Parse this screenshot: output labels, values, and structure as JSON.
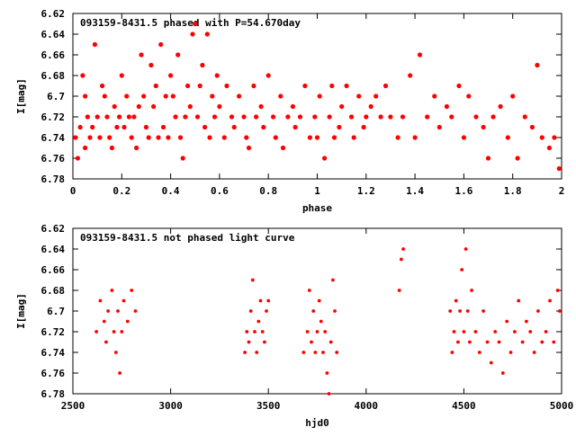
{
  "chart_data": [
    {
      "type": "scatter",
      "title": "093159-8431.5 phased with P=54.670day",
      "xlabel": "phase",
      "ylabel": "I[mag]",
      "xlim": [
        0,
        2
      ],
      "ylim": [
        6.62,
        6.78
      ],
      "y_inverted": true,
      "x_ticks": [
        0,
        0.2,
        0.4,
        0.6,
        0.8,
        1,
        1.2,
        1.4,
        1.6,
        1.8,
        2
      ],
      "x_tick_labels": [
        "0",
        "0.2",
        "0.4",
        "0.6",
        "0.8",
        "1",
        "1.2",
        "1.4",
        "1.6",
        "1.8",
        "2"
      ],
      "y_ticks": [
        6.62,
        6.64,
        6.66,
        6.68,
        6.7,
        6.72,
        6.74,
        6.76,
        6.78
      ],
      "y_tick_labels": [
        "6.62",
        "6.64",
        "6.66",
        "6.68",
        "6.7",
        "6.72",
        "6.74",
        "6.76",
        "6.78"
      ],
      "marker_color": "#ff0000",
      "grid": false,
      "x": [
        0.01,
        0.02,
        0.03,
        0.04,
        0.05,
        0.05,
        0.06,
        0.07,
        0.08,
        0.09,
        0.1,
        0.11,
        0.12,
        0.13,
        0.14,
        0.15,
        0.16,
        0.17,
        0.18,
        0.19,
        0.2,
        0.21,
        0.22,
        0.23,
        0.24,
        0.25,
        0.26,
        0.27,
        0.28,
        0.29,
        0.3,
        0.31,
        0.32,
        0.33,
        0.34,
        0.35,
        0.36,
        0.37,
        0.38,
        0.39,
        0.4,
        0.41,
        0.42,
        0.43,
        0.44,
        0.45,
        0.46,
        0.47,
        0.48,
        0.49,
        0.5,
        0.51,
        0.52,
        0.53,
        0.54,
        0.55,
        0.56,
        0.57,
        0.58,
        0.59,
        0.6,
        0.62,
        0.63,
        0.65,
        0.66,
        0.68,
        0.7,
        0.71,
        0.72,
        0.74,
        0.75,
        0.77,
        0.78,
        0.8,
        0.82,
        0.83,
        0.85,
        0.86,
        0.88,
        0.9,
        0.91,
        0.93,
        0.95,
        0.97,
        0.99,
        1.0,
        1.01,
        1.03,
        1.05,
        1.06,
        1.07,
        1.09,
        1.1,
        1.12,
        1.14,
        1.15,
        1.17,
        1.19,
        1.2,
        1.22,
        1.24,
        1.26,
        1.28,
        1.3,
        1.33,
        1.35,
        1.38,
        1.4,
        1.42,
        1.45,
        1.48,
        1.5,
        1.53,
        1.55,
        1.58,
        1.6,
        1.62,
        1.65,
        1.68,
        1.7,
        1.72,
        1.75,
        1.78,
        1.8,
        1.82,
        1.85,
        1.88,
        1.9,
        1.92,
        1.95,
        1.97,
        1.99
      ],
      "y": [
        6.74,
        6.76,
        6.73,
        6.68,
        6.7,
        6.75,
        6.72,
        6.74,
        6.73,
        6.65,
        6.72,
        6.74,
        6.69,
        6.7,
        6.72,
        6.74,
        6.75,
        6.71,
        6.73,
        6.72,
        6.68,
        6.73,
        6.7,
        6.72,
        6.74,
        6.72,
        6.75,
        6.71,
        6.66,
        6.7,
        6.73,
        6.74,
        6.67,
        6.71,
        6.69,
        6.74,
        6.65,
        6.73,
        6.7,
        6.74,
        6.68,
        6.7,
        6.72,
        6.66,
        6.74,
        6.76,
        6.72,
        6.69,
        6.71,
        6.64,
        6.63,
        6.72,
        6.69,
        6.67,
        6.73,
        6.64,
        6.74,
        6.7,
        6.72,
        6.68,
        6.71,
        6.74,
        6.69,
        6.72,
        6.73,
        6.7,
        6.72,
        6.74,
        6.75,
        6.69,
        6.72,
        6.71,
        6.73,
        6.68,
        6.72,
        6.74,
        6.7,
        6.75,
        6.72,
        6.71,
        6.73,
        6.72,
        6.69,
        6.74,
        6.72,
        6.74,
        6.7,
        6.76,
        6.72,
        6.69,
        6.74,
        6.73,
        6.71,
        6.69,
        6.72,
        6.74,
        6.7,
        6.73,
        6.72,
        6.71,
        6.7,
        6.72,
        6.69,
        6.72,
        6.74,
        6.72,
        6.68,
        6.74,
        6.66,
        6.72,
        6.7,
        6.73,
        6.71,
        6.72,
        6.69,
        6.74,
        6.7,
        6.72,
        6.73,
        6.76,
        6.72,
        6.71,
        6.74,
        6.7,
        6.76,
        6.72,
        6.73,
        6.67,
        6.74,
        6.75,
        6.74,
        6.77
      ]
    },
    {
      "type": "scatter",
      "title": "093159-8431.5 not phased light curve",
      "xlabel": "hjd0",
      "ylabel": "I[mag]",
      "xlim": [
        2500,
        5000
      ],
      "ylim": [
        6.62,
        6.78
      ],
      "y_inverted": true,
      "x_ticks": [
        2500,
        3000,
        3500,
        4000,
        4500,
        5000
      ],
      "x_tick_labels": [
        "2500",
        "3000",
        "3500",
        "4000",
        "4500",
        "5000"
      ],
      "y_ticks": [
        6.62,
        6.64,
        6.66,
        6.68,
        6.7,
        6.72,
        6.74,
        6.76,
        6.78
      ],
      "y_tick_labels": [
        "6.62",
        "6.64",
        "6.66",
        "6.68",
        "6.7",
        "6.72",
        "6.74",
        "6.76",
        "6.78"
      ],
      "marker_color": "#ff0000",
      "grid": false,
      "x": [
        2620,
        2640,
        2660,
        2670,
        2680,
        2700,
        2710,
        2720,
        2730,
        2740,
        2750,
        2760,
        2780,
        2800,
        2820,
        3380,
        3390,
        3400,
        3410,
        3420,
        3430,
        3440,
        3450,
        3460,
        3470,
        3480,
        3490,
        3500,
        3680,
        3700,
        3710,
        3720,
        3730,
        3740,
        3750,
        3760,
        3770,
        3780,
        3790,
        3800,
        3810,
        3820,
        3830,
        3840,
        3850,
        4170,
        4180,
        4190,
        4430,
        4440,
        4450,
        4460,
        4470,
        4480,
        4490,
        4500,
        4510,
        4520,
        4530,
        4540,
        4560,
        4580,
        4600,
        4620,
        4640,
        4660,
        4680,
        4700,
        4720,
        4740,
        4760,
        4780,
        4800,
        4820,
        4840,
        4860,
        4880,
        4900,
        4920,
        4940,
        4960,
        4980,
        4990
      ],
      "y": [
        6.72,
        6.69,
        6.71,
        6.73,
        6.7,
        6.68,
        6.72,
        6.74,
        6.7,
        6.76,
        6.72,
        6.69,
        6.71,
        6.68,
        6.7,
        6.74,
        6.72,
        6.73,
        6.7,
        6.67,
        6.72,
        6.74,
        6.71,
        6.69,
        6.72,
        6.73,
        6.7,
        6.69,
        6.74,
        6.72,
        6.68,
        6.73,
        6.7,
        6.74,
        6.72,
        6.69,
        6.71,
        6.74,
        6.72,
        6.76,
        6.78,
        6.73,
        6.67,
        6.7,
        6.74,
        6.68,
        6.65,
        6.64,
        6.7,
        6.74,
        6.72,
        6.69,
        6.73,
        6.7,
        6.66,
        6.72,
        6.64,
        6.7,
        6.73,
        6.68,
        6.72,
        6.74,
        6.7,
        6.73,
        6.75,
        6.72,
        6.73,
        6.76,
        6.71,
        6.74,
        6.72,
        6.69,
        6.73,
        6.71,
        6.72,
        6.74,
        6.7,
        6.73,
        6.72,
        6.69,
        6.73,
        6.68,
        6.7
      ]
    }
  ]
}
